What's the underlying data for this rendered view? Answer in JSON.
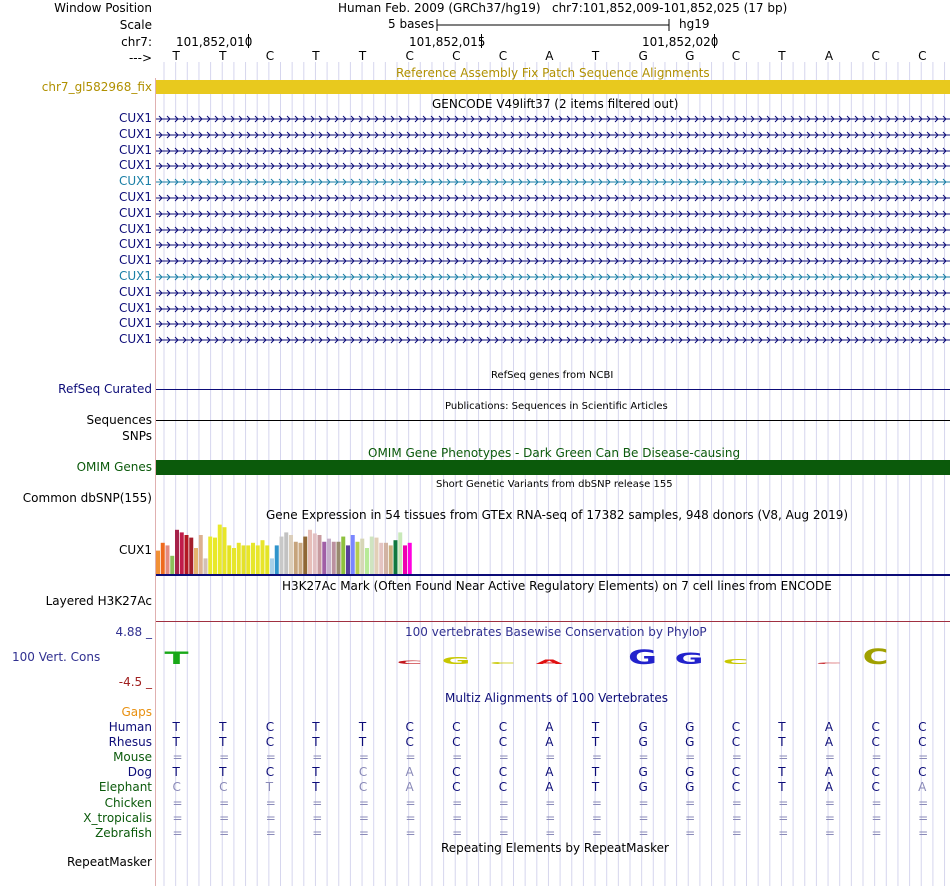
{
  "header": {
    "window_position_label": "Window Position",
    "scale_label": "Scale",
    "chrom_label": "chr7:",
    "strand_label": "--->",
    "assembly": "Human Feb. 2009 (GRCh37/hg19)",
    "position": "chr7:101,852,009-101,852,025 (17 bp)",
    "scale_text": "5 bases",
    "db": "hg19",
    "ruler_ticks": [
      "101,852,010",
      "101,852,015",
      "101,852,020"
    ]
  },
  "bases": [
    "T",
    "T",
    "C",
    "T",
    "T",
    "C",
    "C",
    "C",
    "A",
    "T",
    "G",
    "G",
    "C",
    "T",
    "A",
    "C",
    "C"
  ],
  "fix_track": {
    "title": "Reference Assembly Fix Patch Sequence Alignments",
    "label": "chr7_gl582968_fix",
    "color": "#e8c91e"
  },
  "gencode": {
    "title": "GENCODE V49lift37 (2 items filtered out)",
    "genes": [
      {
        "name": "CUX1",
        "color": "#0c0c78"
      },
      {
        "name": "CUX1",
        "color": "#0c0c78"
      },
      {
        "name": "CUX1",
        "color": "#0c0c78"
      },
      {
        "name": "CUX1",
        "color": "#0c0c78"
      },
      {
        "name": "CUX1",
        "color": "#1a7fa6"
      },
      {
        "name": "CUX1",
        "color": "#0c0c78"
      },
      {
        "name": "CUX1",
        "color": "#0c0c78"
      },
      {
        "name": "CUX1",
        "color": "#0c0c78"
      },
      {
        "name": "CUX1",
        "color": "#0c0c78"
      },
      {
        "name": "CUX1",
        "color": "#0c0c78"
      },
      {
        "name": "CUX1",
        "color": "#1a7fa6"
      },
      {
        "name": "CUX1",
        "color": "#0c0c78"
      },
      {
        "name": "CUX1",
        "color": "#0c0c78"
      },
      {
        "name": "CUX1",
        "color": "#0c0c78"
      },
      {
        "name": "CUX1",
        "color": "#0c0c78"
      }
    ]
  },
  "refseq": {
    "title": "RefSeq genes from NCBI",
    "label": "RefSeq Curated"
  },
  "pubs": {
    "title": "Publications: Sequences in Scientific Articles",
    "label": "Sequences"
  },
  "snps_label": "SNPs",
  "omim": {
    "title": "OMIM Gene Phenotypes - Dark Green Can Be Disease-causing",
    "label": "OMIM Genes",
    "color": "#0b5a0b"
  },
  "dbsnp": {
    "title": "Short Genetic Variants from dbSNP release 155",
    "label": "Common dbSNP(155)"
  },
  "gtex": {
    "title": "Gene Expression in 54 tissues from GTEx RNA-seq of 17382 samples, 948 donors (V8, Aug 2019)",
    "label": "CUX1",
    "values": [
      0.45,
      0.6,
      0.55,
      0.35,
      0.85,
      0.8,
      0.75,
      0.7,
      0.5,
      0.75,
      0.3,
      0.72,
      0.7,
      0.95,
      0.9,
      0.55,
      0.5,
      0.6,
      0.55,
      0.55,
      0.6,
      0.55,
      0.65,
      0.55,
      0.3,
      0.55,
      0.72,
      0.8,
      0.75,
      0.62,
      0.6,
      0.72,
      0.85,
      0.78,
      0.75,
      0.62,
      0.68,
      0.62,
      0.62,
      0.72,
      0.55,
      0.75,
      0.62,
      0.68,
      0.5,
      0.72,
      0.7,
      0.6,
      0.6,
      0.55,
      0.65,
      0.8,
      0.55,
      0.6
    ],
    "colors": [
      "#f19035",
      "#ee6a1e",
      "#e48b80",
      "#8bbf5a",
      "#a6224a",
      "#c01c4a",
      "#b21823",
      "#a41d2b",
      "#e4b46e",
      "#dcb091",
      "#d2c0b6",
      "#eaea2a",
      "#e8e828",
      "#eaea2a",
      "#e8e628",
      "#e4e221",
      "#e6e62a",
      "#e8e42a",
      "#e4e22a",
      "#e8e629",
      "#e6e62b",
      "#e8e62b",
      "#e8e42a",
      "#e4e426",
      "#a8d0e8",
      "#2f94cc",
      "#c8c8c8",
      "#c2c2c2",
      "#dccfbc",
      "#c6a47c",
      "#cbaa82",
      "#8f6734",
      "#e7bfb9",
      "#e2bfc2",
      "#c89ba0",
      "#a05ea6",
      "#c6b1cc",
      "#bb91a0",
      "#988a6f",
      "#8ec13e",
      "#5a3e9d",
      "#7a86ff",
      "#b6ce50",
      "#d6d6b6",
      "#b8ea98",
      "#cfe4c0",
      "#e2cfb7",
      "#e4c4c2",
      "#d2b3a3",
      "#ccb080",
      "#11783f",
      "#c9e9b9",
      "#ee00b0",
      "#ff00e0"
    ]
  },
  "h3k27ac": {
    "title": "H3K27Ac Mark (Often Found Near Active Regulatory Elements) on 7 cell lines from ENCODE",
    "label": "Layered H3K27Ac"
  },
  "cons": {
    "title": "100 vertebrates Basewise Conservation by PhyloP",
    "label": "100 Vert. Cons",
    "max": "4.88 _",
    "min": "-4.5 _",
    "logo_letters": [
      {
        "char": "T",
        "color": "#18a818",
        "h": 0.7
      },
      {
        "char": "",
        "color": "#000000",
        "h": 0
      },
      {
        "char": "",
        "color": "#000000",
        "h": 0
      },
      {
        "char": "",
        "color": "#000000",
        "h": 0
      },
      {
        "char": "",
        "color": "#000000",
        "h": 0
      },
      {
        "char": "C",
        "color": "#c2181e",
        "h": 0.2
      },
      {
        "char": "G",
        "color": "#c8c800",
        "h": 0.4
      },
      {
        "char": "C",
        "color": "#c8c800",
        "h": 0.1
      },
      {
        "char": "A",
        "color": "#e01010",
        "h": 0.25
      },
      {
        "char": "",
        "color": "#000000",
        "h": 0
      },
      {
        "char": "G",
        "color": "#2222cc",
        "h": 0.8
      },
      {
        "char": "G",
        "color": "#2222cc",
        "h": 0.65
      },
      {
        "char": "C",
        "color": "#c8c800",
        "h": 0.3
      },
      {
        "char": "",
        "color": "#000000",
        "h": 0
      },
      {
        "char": "C",
        "color": "#c2181e",
        "h": 0.08
      },
      {
        "char": "C",
        "color": "#a0a000",
        "h": 0.9
      },
      {
        "char": "",
        "color": "#000000",
        "h": 0
      }
    ]
  },
  "multiz": {
    "title": "Multiz Alignments of 100 Vertebrates",
    "gaps_label": "Gaps",
    "species": [
      {
        "name": "Human",
        "color": "#0c0c78",
        "bases": [
          "T",
          "T",
          "C",
          "T",
          "T",
          "C",
          "C",
          "C",
          "A",
          "T",
          "G",
          "G",
          "C",
          "T",
          "A",
          "C",
          "C"
        ],
        "light": []
      },
      {
        "name": "Rhesus",
        "color": "#0c0c78",
        "bases": [
          "T",
          "T",
          "C",
          "T",
          "T",
          "C",
          "C",
          "C",
          "A",
          "T",
          "G",
          "G",
          "C",
          "T",
          "A",
          "C",
          "C"
        ],
        "light": []
      },
      {
        "name": "Mouse",
        "color": "#0b5a0b",
        "bases": [
          "=",
          "=",
          "=",
          "=",
          "=",
          "=",
          "=",
          "=",
          "=",
          "=",
          "=",
          "=",
          "=",
          "=",
          "=",
          "=",
          "="
        ],
        "light": []
      },
      {
        "name": "Dog",
        "color": "#0c0c78",
        "bases": [
          "T",
          "T",
          "C",
          "T",
          "C",
          "A",
          "C",
          "C",
          "A",
          "T",
          "G",
          "G",
          "C",
          "T",
          "A",
          "C",
          "C"
        ],
        "light": [
          4,
          5
        ]
      },
      {
        "name": "Elephant",
        "color": "#0b5a0b",
        "bases": [
          "C",
          "C",
          "T",
          "T",
          "C",
          "A",
          "C",
          "C",
          "A",
          "T",
          "G",
          "G",
          "C",
          "T",
          "A",
          "C",
          "A"
        ],
        "light": [
          0,
          1,
          2,
          4,
          5,
          16
        ]
      },
      {
        "name": "Chicken",
        "color": "#0b5a0b",
        "bases": [
          "=",
          "=",
          "=",
          "=",
          "=",
          "=",
          "=",
          "=",
          "=",
          "=",
          "=",
          "=",
          "=",
          "=",
          "=",
          "=",
          "="
        ],
        "light": []
      },
      {
        "name": "X_tropicalis",
        "color": "#0b5a0b",
        "bases": [
          "=",
          "=",
          "=",
          "=",
          "=",
          "=",
          "=",
          "=",
          "=",
          "=",
          "=",
          "=",
          "=",
          "=",
          "=",
          "=",
          "="
        ],
        "light": []
      },
      {
        "name": "Zebrafish",
        "color": "#0b5a0b",
        "bases": [
          "=",
          "=",
          "=",
          "=",
          "=",
          "=",
          "=",
          "=",
          "=",
          "=",
          "=",
          "=",
          "=",
          "=",
          "=",
          "=",
          "="
        ],
        "light": []
      }
    ]
  },
  "repeats": {
    "title": "Repeating Elements by RepeatMasker",
    "label": "RepeatMasker"
  }
}
